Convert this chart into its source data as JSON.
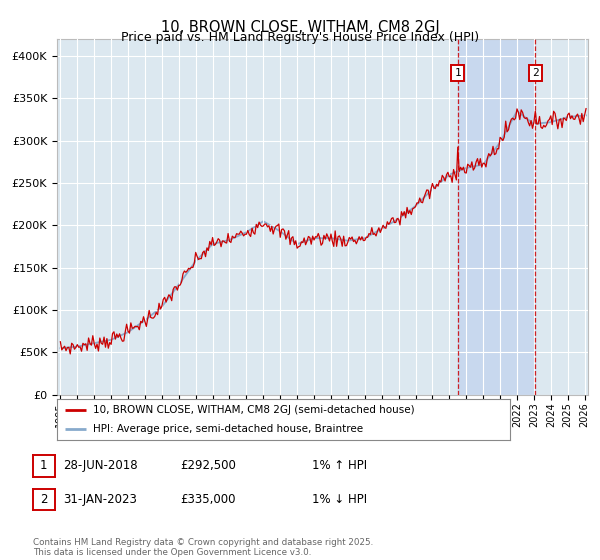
{
  "title": "10, BROWN CLOSE, WITHAM, CM8 2GJ",
  "subtitle": "Price paid vs. HM Land Registry's House Price Index (HPI)",
  "ylim": [
    0,
    420000
  ],
  "yticks": [
    0,
    50000,
    100000,
    150000,
    200000,
    250000,
    300000,
    350000,
    400000
  ],
  "ytick_labels": [
    "£0",
    "£50K",
    "£100K",
    "£150K",
    "£200K",
    "£250K",
    "£300K",
    "£350K",
    "£400K"
  ],
  "xlim_start": 1994.8,
  "xlim_end": 2026.2,
  "line_color_red": "#cc0000",
  "line_color_blue": "#88aacc",
  "shade_color": "#c8d8ee",
  "bg_color": "#dce8f0",
  "grid_color": "#ffffff",
  "marker1_x": 2018.49,
  "marker1_y": 292500,
  "marker2_x": 2023.08,
  "marker2_y": 335000,
  "annotation1": [
    "1",
    "28-JUN-2018",
    "£292,500",
    "1% ↑ HPI"
  ],
  "annotation2": [
    "2",
    "31-JAN-2023",
    "£335,000",
    "1% ↓ HPI"
  ],
  "legend_entry1": "10, BROWN CLOSE, WITHAM, CM8 2GJ (semi-detached house)",
  "legend_entry2": "HPI: Average price, semi-detached house, Braintree",
  "footer": "Contains HM Land Registry data © Crown copyright and database right 2025.\nThis data is licensed under the Open Government Licence v3.0.",
  "title_fontsize": 10.5,
  "subtitle_fontsize": 9
}
